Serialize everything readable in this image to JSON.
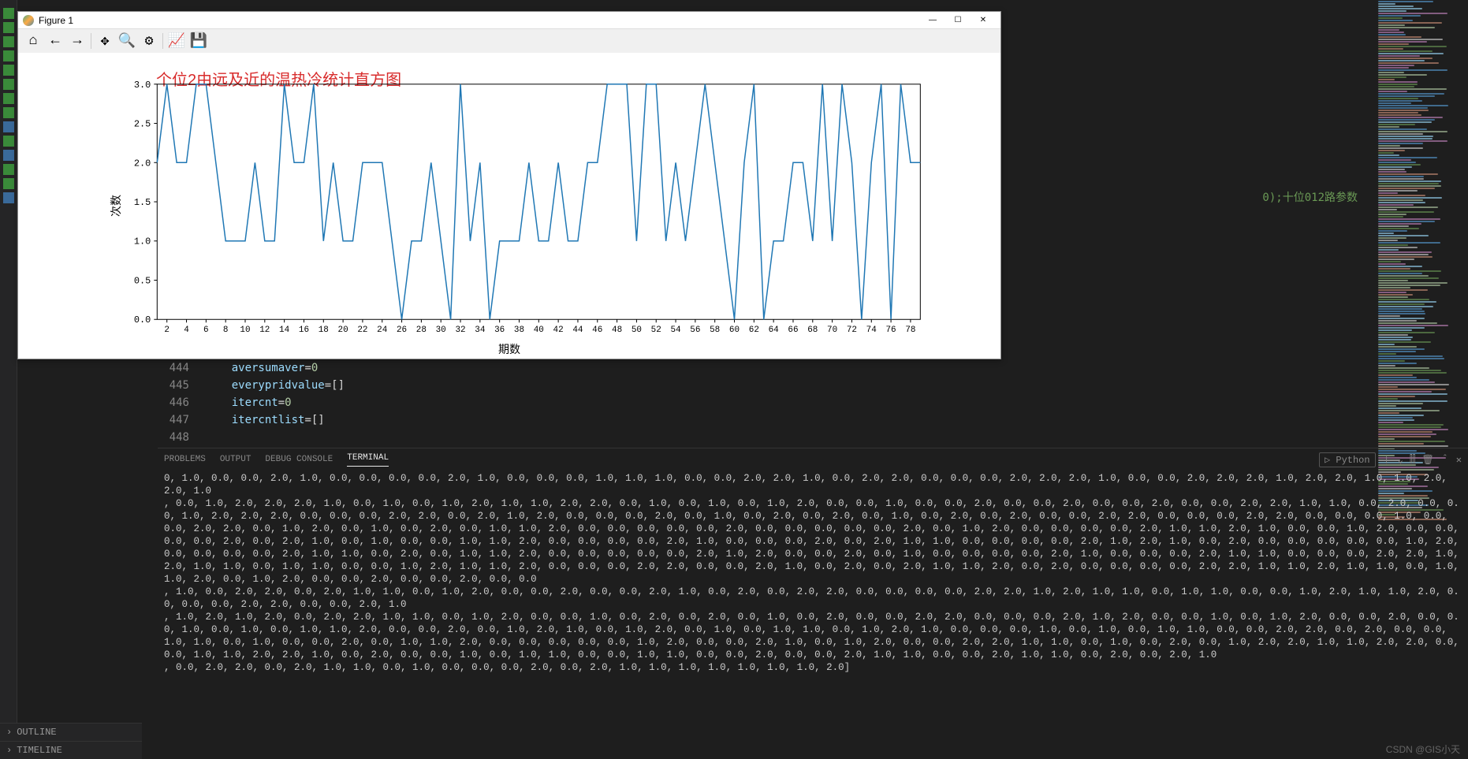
{
  "figure": {
    "title": "Figure 1",
    "toolbar_icons": [
      "home",
      "back",
      "forward",
      "sep",
      "pan",
      "zoom",
      "configure",
      "sep",
      "edit",
      "save"
    ],
    "chart": {
      "type": "line",
      "title": "个位2由远及近的温热冷统计直方图",
      "title_color": "#d82c2c",
      "title_fontsize": 20,
      "xlabel": "期数",
      "ylabel": "次数",
      "label_fontsize": 14,
      "line_color": "#1f77b4",
      "line_width": 1.5,
      "background": "#ffffff",
      "border_color": "#000000",
      "xlim": [
        1,
        79
      ],
      "ylim": [
        0.0,
        3.0
      ],
      "ytick_step": 0.5,
      "xtick_step": 2,
      "xtick_start": 2,
      "y_values": [
        2,
        3,
        2,
        2,
        3,
        3,
        2,
        1,
        1,
        1,
        2,
        1,
        1,
        3,
        2,
        2,
        3,
        1,
        2,
        1,
        1,
        2,
        2,
        2,
        1,
        0,
        1,
        1,
        2,
        1,
        0,
        3,
        1,
        2,
        0,
        1,
        1,
        1,
        2,
        1,
        1,
        2,
        1,
        1,
        2,
        2,
        3,
        3,
        3,
        1,
        3,
        3,
        1,
        2,
        1,
        2,
        3,
        2,
        1,
        0,
        2,
        3,
        0,
        1,
        1,
        2,
        2,
        1,
        3,
        1,
        3,
        2,
        0,
        2,
        3,
        0,
        3,
        2,
        2
      ]
    }
  },
  "window_controls": {
    "minimize": "—",
    "maximize": "☐",
    "close": "✕"
  },
  "code": {
    "lines": [
      {
        "no": 444,
        "tokens": [
          [
            "var",
            "aversumaver"
          ],
          [
            "op",
            "="
          ],
          [
            "num",
            "0"
          ]
        ]
      },
      {
        "no": 445,
        "tokens": [
          [
            "var",
            "everypridvalue"
          ],
          [
            "op",
            "="
          ],
          [
            "brkt",
            "[]"
          ]
        ]
      },
      {
        "no": 446,
        "tokens": [
          [
            "var",
            "itercnt"
          ],
          [
            "op",
            "="
          ],
          [
            "num",
            "0"
          ]
        ]
      },
      {
        "no": 447,
        "tokens": [
          [
            "var",
            "itercntlist"
          ],
          [
            "op",
            "="
          ],
          [
            "brkt",
            "[]"
          ]
        ]
      },
      {
        "no": 448,
        "tokens": []
      }
    ],
    "background_comment": "0);十位012路参数"
  },
  "terminal": {
    "tabs": [
      "PROBLEMS",
      "OUTPUT",
      "DEBUG CONSOLE",
      "TERMINAL"
    ],
    "active_tab": "TERMINAL",
    "kind": "Python",
    "right_icons": [
      "plus",
      "dropdown",
      "split",
      "trash",
      "up",
      "close"
    ],
    "output": "0, 1.0, 0.0, 0.0, 2.0, 1.0, 0.0, 0.0, 0.0, 0.0, 2.0, 1.0, 0.0, 0.0, 0.0, 1.0, 1.0, 1.0, 0.0, 0.0, 2.0, 2.0, 1.0, 0.0, 2.0, 2.0, 0.0, 0.0, 0.0, 2.0, 2.0, 2.0, 1.0, 0.0, 0.0, 2.0, 2.0, 2.0, 1.0, 2.0, 2.0, 1.0, 1.0, 2.0, 2.0, 1.0\n, 0.0, 1.0, 2.0, 2.0, 2.0, 1.0, 0.0, 1.0, 0.0, 1.0, 2.0, 1.0, 1.0, 2.0, 2.0, 0.0, 1.0, 0.0, 1.0, 0.0, 1.0, 2.0, 0.0, 0.0, 1.0, 0.0, 0.0, 2.0, 0.0, 0.0, 2.0, 0.0, 0.0, 2.0, 0.0, 0.0, 2.0, 2.0, 1.0, 1.0, 0.0, 2.0, 0.0, 0.0, 1.0, 2.0, 2.0, 2.0, 0.0, 0.0, 0.0, 2.0, 2.0, 0.0, 2.0, 1.0, 2.0, 0.0, 0.0, 0.0, 2.0, 0.0, 1.0, 0.0, 2.0, 0.0, 2.0, 0.0, 1.0, 0.0, 2.0, 0.0, 2.0, 0.0, 0.0, 2.0, 2.0, 0.0, 0.0, 0.0, 2.0, 2.0, 0.0, 0.0, 0.0, 1.0, 0.0, 0.0, 2.0, 2.0, 0.0, 1.0, 2.0, 0.0, 1.0, 0.0, 2.0, 0.0, 1.0, 1.0, 2.0, 0.0, 0.0, 0.0, 0.0, 0.0, 2.0, 0.0, 0.0, 0.0, 0.0, 0.0, 2.0, 0.0, 1.0, 2.0, 0.0, 0.0, 0.0, 0.0, 2.0, 1.0, 1.0, 2.0, 1.0, 0.0, 0.0, 1.0, 2.0, 0.0, 0.0, 0.0, 0.0, 2.0, 0.0, 2.0, 1.0, 0.0, 1.0, 0.0, 0.0, 1.0, 1.0, 2.0, 0.0, 0.0, 0.0, 0.0, 2.0, 1.0, 0.0, 0.0, 0.0, 2.0, 0.0, 2.0, 1.0, 1.0, 0.0, 0.0, 0.0, 0.0, 2.0, 1.0, 2.0, 1.0, 0.0, 2.0, 0.0, 0.0, 0.0, 0.0, 0.0, 1.0, 2.0, 0.0, 0.0, 0.0, 0.0, 2.0, 1.0, 1.0, 0.0, 2.0, 0.0, 1.0, 1.0, 2.0, 0.0, 0.0, 0.0, 0.0, 0.0, 2.0, 1.0, 2.0, 0.0, 0.0, 2.0, 0.0, 1.0, 0.0, 0.0, 0.0, 0.0, 2.0, 1.0, 0.0, 0.0, 0.0, 2.0, 1.0, 1.0, 0.0, 0.0, 0.0, 2.0, 2.0, 1.0, 2.0, 1.0, 1.0, 0.0, 1.0, 1.0, 0.0, 0.0, 1.0, 2.0, 1.0, 1.0, 2.0, 0.0, 0.0, 0.0, 2.0, 2.0, 0.0, 0.0, 2.0, 1.0, 0.0, 2.0, 0.0, 2.0, 1.0, 1.0, 2.0, 0.0, 2.0, 0.0, 0.0, 0.0, 0.0, 2.0, 2.0, 1.0, 1.0, 2.0, 1.0, 1.0, 0.0, 1.0, 1.0, 2.0, 0.0, 1.0, 2.0, 0.0, 0.0, 2.0, 0.0, 0.0, 2.0, 0.0, 0.0\n, 1.0, 0.0, 2.0, 2.0, 0.0, 2.0, 1.0, 1.0, 0.0, 1.0, 2.0, 0.0, 0.0, 2.0, 0.0, 0.0, 2.0, 1.0, 0.0, 2.0, 0.0, 2.0, 2.0, 0.0, 0.0, 0.0, 0.0, 2.0, 2.0, 1.0, 2.0, 1.0, 1.0, 0.0, 1.0, 1.0, 0.0, 0.0, 1.0, 2.0, 1.0, 1.0, 2.0, 0.0, 0.0, 0.0, 2.0, 2.0, 0.0, 0.0, 2.0, 1.0\n, 1.0, 2.0, 1.0, 2.0, 0.0, 2.0, 2.0, 1.0, 1.0, 0.0, 1.0, 2.0, 0.0, 0.0, 1.0, 0.0, 2.0, 0.0, 2.0, 0.0, 1.0, 0.0, 2.0, 0.0, 0.0, 2.0, 2.0, 0.0, 0.0, 0.0, 2.0, 1.0, 2.0, 0.0, 0.0, 1.0, 0.0, 1.0, 2.0, 0.0, 0.0, 2.0, 0.0, 0.0, 1.0, 0.0, 1.0, 0.0, 1.0, 1.0, 2.0, 0.0, 0.0, 2.0, 0.0, 1.0, 2.0, 1.0, 0.0, 1.0, 2.0, 0.0, 1.0, 0.0, 1.0, 1.0, 0.0, 1.0, 2.0, 1.0, 0.0, 0.0, 0.0, 1.0, 0.0, 1.0, 0.0, 1.0, 1.0, 0.0, 0.0, 2.0, 2.0, 0.0, 2.0, 0.0, 0.0, 1.0, 1.0, 0.0, 1.0, 0.0, 0.0, 2.0, 0.0, 1.0, 1.0, 2.0, 0.0, 0.0, 0.0, 0.0, 0.0, 1.0, 2.0, 0.0, 0.0, 2.0, 1.0, 0.0, 1.0, 2.0, 0.0, 0.0, 2.0, 2.0, 1.0, 1.0, 0.0, 1.0, 0.0, 2.0, 0.0, 1.0, 2.0, 2.0, 1.0, 1.0, 2.0, 2.0, 0.0, 0.0, 1.0, 1.0, 2.0, 2.0, 1.0, 0.0, 2.0, 0.0, 0.0, 1.0, 0.0, 1.0, 1.0, 0.0, 0.0, 1.0, 1.0, 0.0, 0.0, 2.0, 0.0, 0.0, 2.0, 1.0, 1.0, 0.0, 0.0, 2.0, 1.0, 1.0, 0.0, 2.0, 0.0, 2.0, 1.0\n, 0.0, 2.0, 2.0, 0.0, 2.0, 1.0, 1.0, 0.0, 1.0, 0.0, 0.0, 0.0, 2.0, 0.0, 2.0, 1.0, 1.0, 1.0, 1.0, 1.0, 1.0, 1.0, 2.0]"
  },
  "sidebar_bottom": [
    "OUTLINE",
    "TIMELINE"
  ],
  "watermark": "CSDN @GIS小天",
  "minimap": {
    "colors": [
      "#569cd6",
      "#ce9178",
      "#6a9955",
      "#9cdcfe",
      "#c586c0",
      "#d4d4d4",
      "#b5cea8"
    ],
    "line_count": 220
  },
  "left_icons": [
    {
      "color": "#3a8a3a"
    },
    {
      "color": "#3a8a3a"
    },
    {
      "color": "#3a8a3a"
    },
    {
      "color": "#3a8a3a"
    },
    {
      "color": "#3a8a3a"
    },
    {
      "color": "#3a8a3a"
    },
    {
      "color": "#3a8a3a"
    },
    {
      "color": "#3a8a3a"
    },
    {
      "color": "#3a6a9a"
    },
    {
      "color": "#3a8a3a"
    },
    {
      "color": "#3a6a9a"
    },
    {
      "color": "#3a8a3a"
    },
    {
      "color": "#3a8a3a"
    },
    {
      "color": "#3a6a9a"
    }
  ]
}
